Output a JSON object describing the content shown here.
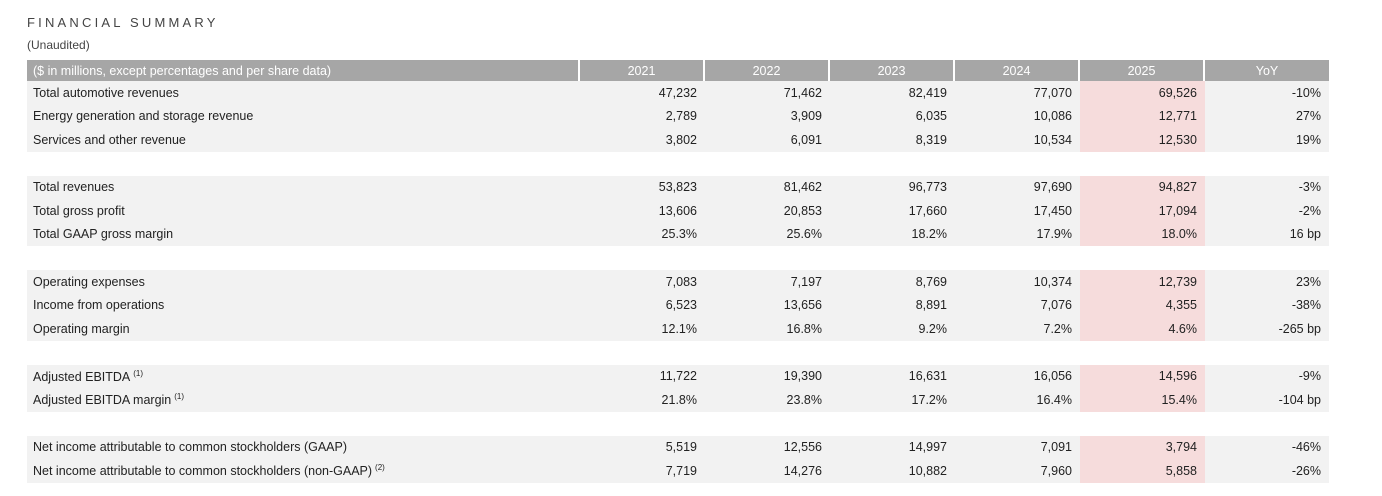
{
  "header": {
    "title": "FINANCIAL SUMMARY",
    "subtitle": "(Unaudited)"
  },
  "table": {
    "columns": [
      "($ in millions, except percentages and per share data)",
      "2021",
      "2022",
      "2023",
      "2024",
      "2025",
      "YoY"
    ],
    "highlight_color": "#f6dcdc",
    "groups": [
      [
        {
          "label": "Total automotive revenues",
          "note": "",
          "values": [
            "47,232",
            "71,462",
            "82,419",
            "77,070",
            "69,526",
            "-10%"
          ]
        },
        {
          "label": "Energy generation and storage revenue",
          "note": "",
          "values": [
            "2,789",
            "3,909",
            "6,035",
            "10,086",
            "12,771",
            "27%"
          ]
        },
        {
          "label": "Services and other revenue",
          "note": "",
          "values": [
            "3,802",
            "6,091",
            "8,319",
            "10,534",
            "12,530",
            "19%"
          ]
        }
      ],
      [
        {
          "label": "Total revenues",
          "note": "",
          "values": [
            "53,823",
            "81,462",
            "96,773",
            "97,690",
            "94,827",
            "-3%"
          ]
        },
        {
          "label": "Total gross profit",
          "note": "",
          "values": [
            "13,606",
            "20,853",
            "17,660",
            "17,450",
            "17,094",
            "-2%"
          ]
        },
        {
          "label": "Total GAAP gross margin",
          "note": "",
          "values": [
            "25.3%",
            "25.6%",
            "18.2%",
            "17.9%",
            "18.0%",
            "16 bp"
          ]
        }
      ],
      [
        {
          "label": "Operating expenses",
          "note": "",
          "values": [
            "7,083",
            "7,197",
            "8,769",
            "10,374",
            "12,739",
            "23%"
          ]
        },
        {
          "label": "Income from operations",
          "note": "",
          "values": [
            "6,523",
            "13,656",
            "8,891",
            "7,076",
            "4,355",
            "-38%"
          ]
        },
        {
          "label": "Operating margin",
          "note": "",
          "values": [
            "12.1%",
            "16.8%",
            "9.2%",
            "7.2%",
            "4.6%",
            "-265 bp"
          ]
        }
      ],
      [
        {
          "label": "Adjusted EBITDA",
          "note": "(1)",
          "values": [
            "11,722",
            "19,390",
            "16,631",
            "16,056",
            "14,596",
            "-9%"
          ]
        },
        {
          "label": "Adjusted EBITDA margin",
          "note": "(1)",
          "values": [
            "21.8%",
            "23.8%",
            "17.2%",
            "16.4%",
            "15.4%",
            "-104 bp"
          ]
        }
      ],
      [
        {
          "label": "Net income attributable to common stockholders (GAAP)",
          "note": "",
          "values": [
            "5,519",
            "12,556",
            "14,997",
            "7,091",
            "3,794",
            "-46%"
          ]
        },
        {
          "label": "Net income attributable to common stockholders (non-GAAP)",
          "note": "(2)",
          "values": [
            "7,719",
            "14,276",
            "10,882",
            "7,960",
            "5,858",
            "-26%"
          ]
        }
      ]
    ]
  }
}
